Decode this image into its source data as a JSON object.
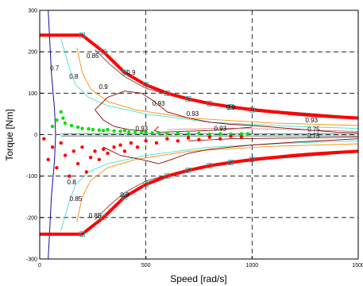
{
  "chart_data": {
    "type": "scatter",
    "title": "",
    "xlabel": "Speed [rad/s]",
    "ylabel": "Torque [Nm]",
    "xlim": [
      0,
      1500
    ],
    "ylim": [
      -300,
      300
    ],
    "x_ticks": [
      0,
      500,
      1000,
      1500
    ],
    "y_ticks": [
      -300,
      -200,
      -100,
      0,
      100,
      200,
      300
    ],
    "grid": true,
    "grid_style": "dashed",
    "colors": {
      "max_torque_envelope": "#ff0000",
      "contour_0_93": "#8b0000",
      "contour_0_9": "#8b3a3a",
      "contour_0_85": "#ff8c00",
      "contour_0_8": "#40e0d0",
      "contour_0_7": "#1010a0",
      "scatter_motoring": "#00e000",
      "scatter_braking": "#ff0000",
      "scatter_magenta": "#ff00ff",
      "scatter_black": "#000000",
      "markers": "#00b0b0"
    },
    "max_torque_envelope": {
      "x": [
        0,
        200,
        300,
        400,
        500,
        600,
        700,
        800,
        900,
        1000,
        1100,
        1200,
        1300,
        1400,
        1500
      ],
      "y_upper": [
        240,
        240,
        200,
        150,
        120,
        100,
        86,
        75,
        67,
        60,
        55,
        50,
        46,
        43,
        40
      ],
      "y_lower": [
        -240,
        -240,
        -200,
        -150,
        -120,
        -100,
        -86,
        -75,
        -67,
        -60,
        -55,
        -50,
        -46,
        -43,
        -40
      ]
    },
    "efficiency_contour_labels": [
      "0.93",
      "0.93",
      "0.93",
      "0.93",
      "0.9",
      "0.9",
      "0.9",
      "0.85",
      "0.85",
      "0.8",
      "0.7",
      "0.75",
      "0.75",
      "0.85",
      "0.8",
      "0.9",
      "0.93"
    ],
    "series": [
      {
        "marker": "dot",
        "x": [
          60,
          80,
          100,
          110,
          120,
          150,
          180,
          200,
          230,
          250,
          280,
          300,
          320,
          350,
          380,
          400,
          420,
          450,
          480,
          500,
          530,
          560,
          600,
          650,
          700,
          750,
          800,
          850,
          900,
          950,
          980
        ],
        "y": [
          20,
          35,
          55,
          40,
          28,
          22,
          18,
          15,
          14,
          12,
          11,
          10,
          12,
          9,
          8,
          10,
          6,
          7,
          5,
          6,
          4,
          5,
          3,
          4,
          2,
          3,
          1,
          2,
          1,
          2,
          2
        ]
      },
      {
        "marker": "dot",
        "x": [
          20,
          40,
          60,
          80,
          100,
          120,
          140,
          160,
          180,
          200,
          220,
          240,
          260,
          280,
          300,
          320,
          350,
          380,
          400,
          430,
          460,
          500,
          550,
          600,
          650,
          700,
          750,
          800,
          850,
          900,
          950
        ],
        "y": [
          -10,
          -60,
          -30,
          -80,
          -20,
          -50,
          -100,
          -40,
          -70,
          -30,
          -90,
          -55,
          -40,
          -60,
          -35,
          -45,
          -30,
          -25,
          -40,
          -20,
          -30,
          -15,
          -20,
          -10,
          -15,
          -8,
          -12,
          -6,
          -10,
          -4,
          -5
        ]
      }
    ]
  }
}
